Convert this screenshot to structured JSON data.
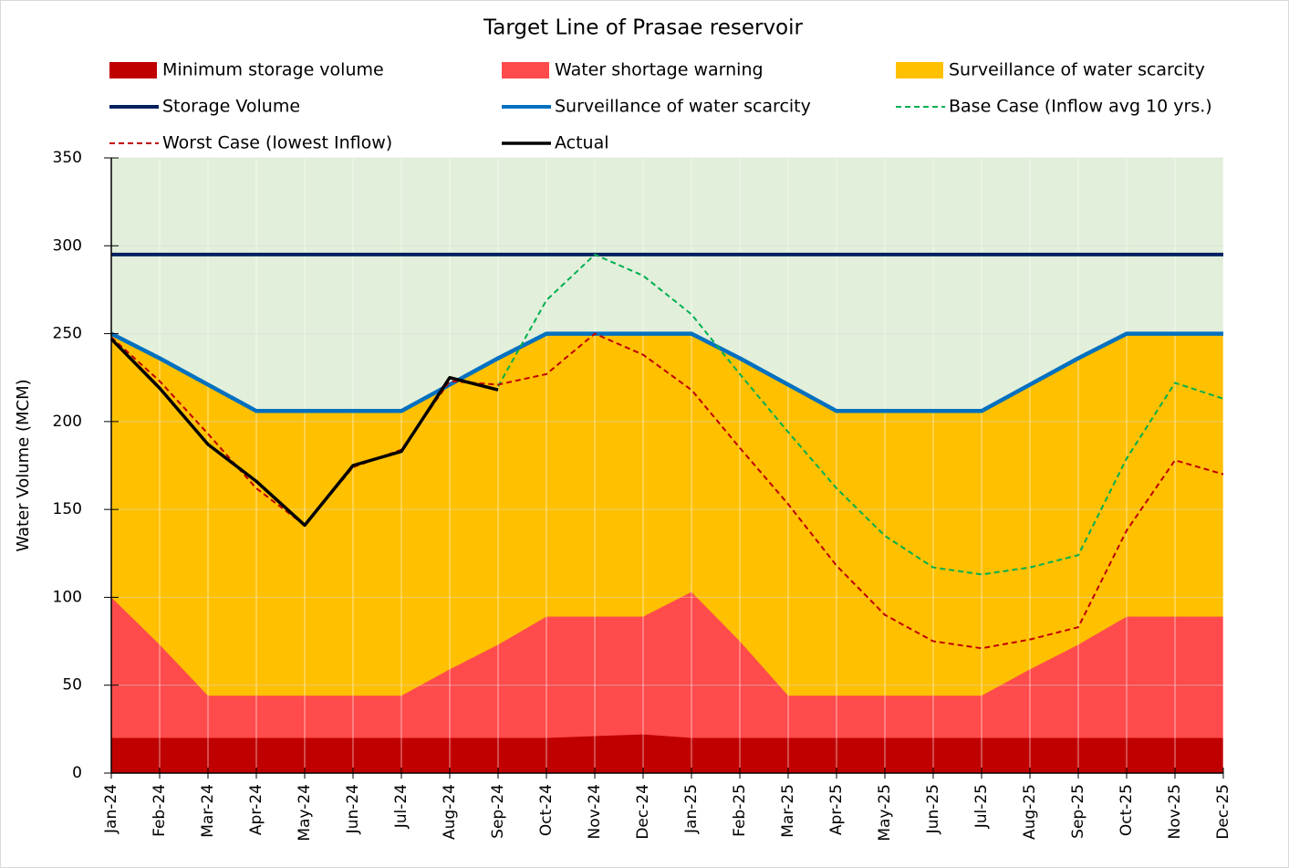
{
  "chart_data": {
    "type": "area",
    "title": "Target Line of Prasae reservoir",
    "y_label": "Water Volume (MCM)",
    "categories": [
      "Jan-24",
      "Feb-24",
      "Mar-24",
      "Apr-24",
      "May-24",
      "Jun-24",
      "Jul-24",
      "Aug-24",
      "Sep-24",
      "Oct-24",
      "Nov-24",
      "Dec-24",
      "Jan-25",
      "Feb-25",
      "Mar-25",
      "Apr-25",
      "May-25",
      "Jun-25",
      "Jul-25",
      "Aug-25",
      "Sep-25",
      "Oct-25",
      "Nov-25",
      "Dec-25"
    ],
    "ylim": [
      0,
      350
    ],
    "yticks": [
      0,
      50,
      100,
      150,
      200,
      250,
      300,
      350
    ],
    "grid": true,
    "plot_background": "#e2efda",
    "series": [
      {
        "name": "Minimum storage volume",
        "type": "area",
        "color": "#c00000",
        "values": [
          20,
          20,
          20,
          20,
          20,
          20,
          20,
          20,
          20,
          20,
          21,
          22,
          20,
          20,
          20,
          20,
          20,
          20,
          20,
          20,
          20,
          20,
          20,
          20
        ]
      },
      {
        "name": "Water shortage warning",
        "type": "area",
        "color": "#ff4b4b",
        "values": [
          100,
          73,
          44,
          44,
          44,
          44,
          44,
          59,
          73,
          89,
          89,
          89,
          103,
          75,
          44,
          44,
          44,
          44,
          44,
          59,
          73,
          89,
          89,
          89
        ]
      },
      {
        "name": "Surveillance of water scarcity",
        "type": "area",
        "color": "#ffc000",
        "values": [
          250,
          236,
          221,
          206,
          206,
          206,
          206,
          221,
          236,
          250,
          250,
          250,
          250,
          236,
          221,
          206,
          206,
          206,
          206,
          221,
          236,
          250,
          250,
          250
        ]
      },
      {
        "name": "Storage Volume",
        "type": "line",
        "color": "#002060",
        "width": 4,
        "values": [
          295,
          295,
          295,
          295,
          295,
          295,
          295,
          295,
          295,
          295,
          295,
          295,
          295,
          295,
          295,
          295,
          295,
          295,
          295,
          295,
          295,
          295,
          295,
          295
        ]
      },
      {
        "name": "Surveillance of water scarcity",
        "type": "line",
        "color": "#0070c0",
        "width": 4.5,
        "values": [
          250,
          236,
          221,
          206,
          206,
          206,
          206,
          221,
          236,
          250,
          250,
          250,
          250,
          236,
          221,
          206,
          206,
          206,
          206,
          221,
          236,
          250,
          250,
          250
        ]
      },
      {
        "name": "Base Case (Inflow avg 10 yrs.)",
        "type": "line",
        "color": "#00b050",
        "width": 2,
        "dash": true,
        "values": [
          null,
          null,
          null,
          null,
          null,
          null,
          null,
          null,
          220,
          269,
          295,
          283,
          261,
          227,
          194,
          162,
          135,
          117,
          113,
          117,
          124,
          179,
          222,
          213
        ]
      },
      {
        "name": "Worst Case (lowest Inflow)",
        "type": "line",
        "color": "#c00000",
        "width": 2,
        "dash": true,
        "values": [
          248,
          223,
          193,
          162,
          141,
          174,
          184,
          223,
          221,
          227,
          250,
          238,
          218,
          185,
          153,
          118,
          90,
          75,
          71,
          76,
          83,
          138,
          178,
          170
        ]
      },
      {
        "name": "Actual",
        "type": "line",
        "color": "#000000",
        "width": 3.5,
        "values": [
          247,
          219,
          187,
          166,
          141,
          175,
          183,
          225,
          218,
          null,
          null,
          null,
          null,
          null,
          null,
          null,
          null,
          null,
          null,
          null,
          null,
          null,
          null,
          null
        ]
      }
    ]
  }
}
